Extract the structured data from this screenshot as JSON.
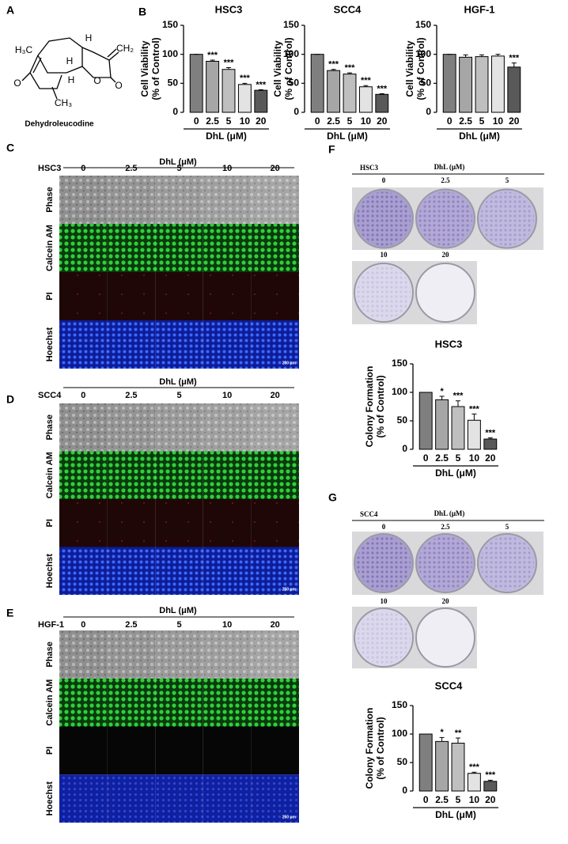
{
  "panel_labels": [
    "A",
    "B",
    "C",
    "D",
    "E",
    "F",
    "G"
  ],
  "structure": {
    "atoms": [
      "H₃C",
      "H",
      "CH₂",
      "H",
      "H",
      "O",
      "O",
      "O",
      "CH₃"
    ],
    "name": "Dehydroleucodine"
  },
  "chart_data": [
    {
      "type": "bar",
      "title": "HSC3",
      "ylabel": [
        "Cell Viability",
        "(% of Control)"
      ],
      "xlabel": "DhL (μM)",
      "categories": [
        "0",
        "2.5",
        "5",
        "10",
        "20"
      ],
      "values": [
        100,
        88,
        74,
        48,
        38
      ],
      "errors": [
        0,
        2,
        3,
        2,
        1
      ],
      "significance": [
        null,
        "***",
        "***",
        "***",
        "***"
      ],
      "colors": [
        "#7f7f7f",
        "#a6a6a6",
        "#bfbfbf",
        "#e3e3e3",
        "#595959"
      ],
      "ylim": [
        0,
        150
      ],
      "yticks": [
        0,
        50,
        100,
        150
      ]
    },
    {
      "type": "bar",
      "title": "SCC4",
      "ylabel": [
        "Cell Viability",
        "(% of Control)"
      ],
      "xlabel": "DhL (μM)",
      "categories": [
        "0",
        "2.5",
        "5",
        "10",
        "20"
      ],
      "values": [
        100,
        72,
        66,
        44,
        31
      ],
      "errors": [
        0,
        2,
        2,
        2,
        1
      ],
      "significance": [
        null,
        "***",
        "***",
        "***",
        "***"
      ],
      "colors": [
        "#7f7f7f",
        "#a6a6a6",
        "#bfbfbf",
        "#e3e3e3",
        "#595959"
      ],
      "ylim": [
        0,
        150
      ],
      "yticks": [
        0,
        50,
        100,
        150
      ]
    },
    {
      "type": "bar",
      "title": "HGF-1",
      "ylabel": [
        "Cell Viability",
        "(% of Control)"
      ],
      "xlabel": "DhL (μM)",
      "categories": [
        "0",
        "2.5",
        "5",
        "10",
        "20"
      ],
      "values": [
        100,
        95,
        96,
        97,
        78
      ],
      "errors": [
        0,
        4,
        3,
        3,
        7
      ],
      "significance": [
        null,
        null,
        null,
        null,
        "***"
      ],
      "colors": [
        "#7f7f7f",
        "#a6a6a6",
        "#bfbfbf",
        "#e3e3e3",
        "#595959"
      ],
      "ylim": [
        0,
        150
      ],
      "yticks": [
        0,
        50,
        100,
        150
      ]
    },
    {
      "type": "bar",
      "title": "HSC3",
      "ylabel": [
        "Colony Formation",
        "(% of Control)"
      ],
      "xlabel": "DhL (μM)",
      "categories": [
        "0",
        "2.5",
        "5",
        "10",
        "20"
      ],
      "values": [
        100,
        87,
        75,
        51,
        18
      ],
      "errors": [
        0,
        6,
        10,
        11,
        2
      ],
      "significance": [
        null,
        "*",
        "***",
        "***",
        "***"
      ],
      "colors": [
        "#7f7f7f",
        "#a6a6a6",
        "#bfbfbf",
        "#e3e3e3",
        "#595959"
      ],
      "ylim": [
        0,
        150
      ],
      "yticks": [
        0,
        50,
        100,
        150
      ]
    },
    {
      "type": "bar",
      "title": "SCC4",
      "ylabel": [
        "Colony Formation",
        "(% of Control)"
      ],
      "xlabel": "DhL (μM)",
      "categories": [
        "0",
        "2.5",
        "5",
        "10",
        "20"
      ],
      "values": [
        100,
        87,
        84,
        31,
        17
      ],
      "errors": [
        0,
        7,
        9,
        2,
        2
      ],
      "significance": [
        null,
        "*",
        "**",
        "***",
        "***"
      ],
      "colors": [
        "#7f7f7f",
        "#a6a6a6",
        "#bfbfbf",
        "#e3e3e3",
        "#595959"
      ],
      "ylim": [
        0,
        150
      ],
      "yticks": [
        0,
        50,
        100,
        150
      ]
    }
  ],
  "microscopy": [
    {
      "cell_line": "HSC3",
      "header": "DhL (μM)",
      "doses": [
        "0",
        "2.5",
        "5",
        "10",
        "20"
      ],
      "channels": [
        "Phase",
        "Calcein AM",
        "PI",
        "Hoechst"
      ],
      "scale_bar": "250 μm"
    },
    {
      "cell_line": "SCC4",
      "header": "DhL (μM)",
      "doses": [
        "0",
        "2.5",
        "5",
        "10",
        "20"
      ],
      "channels": [
        "Phase",
        "Calcein AM",
        "PI",
        "Hoechst"
      ],
      "scale_bar": "250 μm"
    },
    {
      "cell_line": "HGF-1",
      "header": "DhL (μM)",
      "doses": [
        "0",
        "2.5",
        "5",
        "10",
        "20"
      ],
      "channels": [
        "Phase",
        "Calcein AM",
        "PI",
        "Hoechst"
      ],
      "scale_bar": "250 μm"
    }
  ],
  "colony_plates": [
    {
      "cell_line": "HSC3",
      "header": "DhL (μM)",
      "doses": [
        "0",
        "2.5",
        "5",
        "10",
        "20"
      ]
    },
    {
      "cell_line": "SCC4",
      "header": "DhL (μM)",
      "doses": [
        "0",
        "2.5",
        "5",
        "10",
        "20"
      ]
    }
  ]
}
